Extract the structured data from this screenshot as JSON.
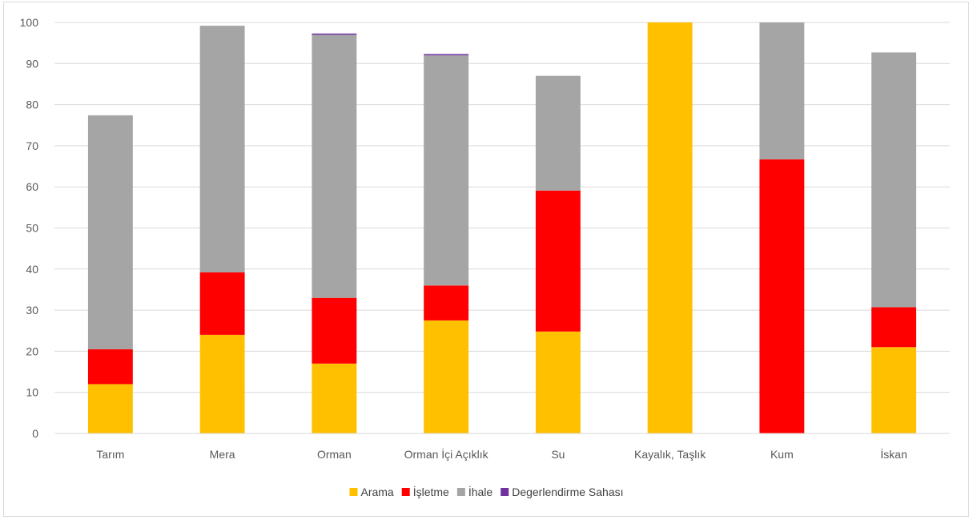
{
  "chart_data": {
    "type": "bar",
    "stacked": true,
    "categories": [
      "Tarım",
      "Mera",
      "Orman",
      "Orman İçi Açıklık",
      "Su",
      "Kayalık, Taşlık",
      "Kum",
      "İskan"
    ],
    "series": [
      {
        "name": "Arama",
        "color": "#FFC000",
        "values": [
          12,
          24,
          17,
          27.5,
          24.8,
          100,
          0,
          21
        ]
      },
      {
        "name": "İşletme",
        "color": "#FF0000",
        "values": [
          8.5,
          15.2,
          16,
          8.5,
          34.3,
          0,
          66.7,
          9.7
        ]
      },
      {
        "name": "İhale",
        "color": "#A5A5A5",
        "values": [
          56.9,
          60,
          64,
          56,
          27.9,
          0,
          33.3,
          62
        ]
      },
      {
        "name": "Degerlendirme Sahası",
        "color": "#7030A0",
        "values": [
          0,
          0,
          0.3,
          0.3,
          0,
          0,
          0,
          0
        ]
      }
    ],
    "ylim": [
      0,
      100
    ],
    "yticks": [
      0,
      10,
      20,
      30,
      40,
      50,
      60,
      70,
      80,
      90,
      100
    ],
    "grid": true,
    "legend_position": "bottom",
    "title": "",
    "xlabel": "",
    "ylabel": ""
  }
}
